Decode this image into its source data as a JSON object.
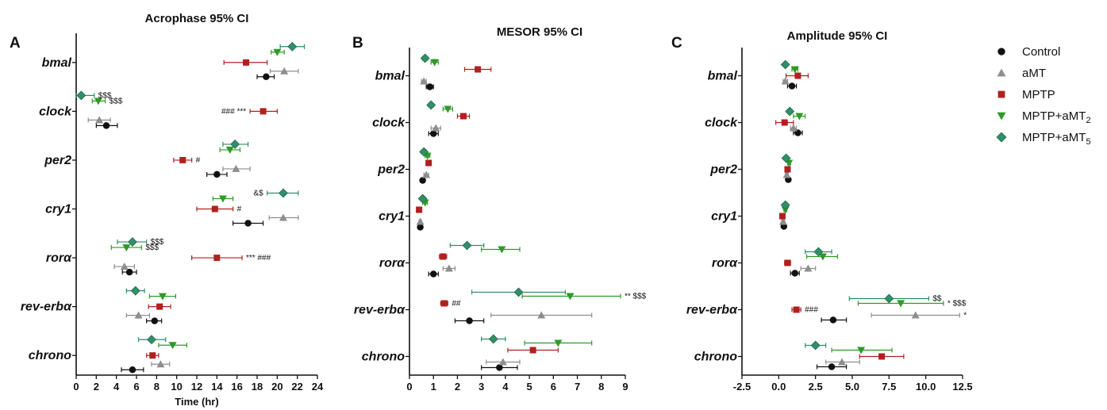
{
  "genes": [
    "bmal",
    "clock",
    "per2",
    "cry1",
    "rorα",
    "rev-erbα",
    "chrono"
  ],
  "legend": [
    {
      "key": "ctrl",
      "label": "Control",
      "color": "#111111",
      "marker": "circle"
    },
    {
      "key": "amt",
      "label": "aMT",
      "color": "#8e8e8e",
      "marker": "triangle-up"
    },
    {
      "key": "mptp",
      "label": "MPTP",
      "color": "#b0201e",
      "marker": "square"
    },
    {
      "key": "amt2",
      "label": "MPTP+aMT",
      "sub": "2",
      "color": "#2e9a27",
      "marker": "triangle-down"
    },
    {
      "key": "amt5",
      "label": "MPTP+aMT",
      "sub": "5",
      "color": "#2f8f68",
      "marker": "diamond"
    }
  ],
  "chart_data": [
    {
      "type": "scatter",
      "letter": "A",
      "title": "Acrophase  95% CI",
      "xlabel": "Time (hr)",
      "xlim": [
        0,
        24
      ],
      "xticks": [
        "0",
        "2",
        "4",
        "6",
        "8",
        "10",
        "12",
        "14",
        "16",
        "18",
        "20",
        "22",
        "24"
      ],
      "series": [
        {
          "key": "ctrl",
          "points": [
            {
              "gene": "bmal",
              "x": 18.9,
              "lo": 18.0,
              "hi": 19.7
            },
            {
              "gene": "clock",
              "x": 3.0,
              "lo": 2.0,
              "hi": 4.1
            },
            {
              "gene": "per2",
              "x": 14.0,
              "lo": 13.0,
              "hi": 15.0
            },
            {
              "gene": "cry1",
              "x": 17.1,
              "lo": 15.6,
              "hi": 18.6
            },
            {
              "gene": "rorα",
              "x": 5.3,
              "lo": 4.6,
              "hi": 6.0
            },
            {
              "gene": "rev-erbα",
              "x": 7.8,
              "lo": 7.0,
              "hi": 8.5
            },
            {
              "gene": "chrono",
              "x": 5.6,
              "lo": 4.5,
              "hi": 6.7
            }
          ]
        },
        {
          "key": "amt",
          "points": [
            {
              "gene": "bmal",
              "x": 20.7,
              "lo": 19.3,
              "hi": 22.1
            },
            {
              "gene": "clock",
              "x": 2.3,
              "lo": 1.2,
              "hi": 3.4
            },
            {
              "gene": "per2",
              "x": 15.9,
              "lo": 14.6,
              "hi": 17.3
            },
            {
              "gene": "cry1",
              "x": 20.6,
              "lo": 19.2,
              "hi": 22.1
            },
            {
              "gene": "rorα",
              "x": 4.8,
              "lo": 3.8,
              "hi": 5.8
            },
            {
              "gene": "rev-erbα",
              "x": 6.2,
              "lo": 5.0,
              "hi": 7.3
            },
            {
              "gene": "chrono",
              "x": 8.4,
              "lo": 7.5,
              "hi": 9.3
            }
          ]
        },
        {
          "key": "mptp",
          "points": [
            {
              "gene": "bmal",
              "x": 16.9,
              "lo": 14.7,
              "hi": 19.0
            },
            {
              "gene": "clock",
              "x": 18.6,
              "lo": 17.3,
              "hi": 20.0
            },
            {
              "gene": "per2",
              "x": 10.6,
              "lo": 9.7,
              "hi": 11.5
            },
            {
              "gene": "cry1",
              "x": 13.8,
              "lo": 12.0,
              "hi": 15.6
            },
            {
              "gene": "rorα",
              "x": 14.0,
              "lo": 11.5,
              "hi": 16.5
            },
            {
              "gene": "rev-erbα",
              "x": 8.3,
              "lo": 7.2,
              "hi": 9.4
            },
            {
              "gene": "chrono",
              "x": 7.6,
              "lo": 7.0,
              "hi": 8.2
            }
          ]
        },
        {
          "key": "amt2",
          "points": [
            {
              "gene": "bmal",
              "x": 20.0,
              "lo": 19.4,
              "hi": 20.7
            },
            {
              "gene": "clock",
              "x": 2.2,
              "lo": 1.6,
              "hi": 2.9
            },
            {
              "gene": "per2",
              "x": 15.3,
              "lo": 14.3,
              "hi": 16.3
            },
            {
              "gene": "cry1",
              "x": 14.6,
              "lo": 13.6,
              "hi": 15.6
            },
            {
              "gene": "rorα",
              "x": 5.0,
              "lo": 3.5,
              "hi": 6.5
            },
            {
              "gene": "rev-erbα",
              "x": 8.6,
              "lo": 7.3,
              "hi": 9.9
            },
            {
              "gene": "chrono",
              "x": 9.6,
              "lo": 8.2,
              "hi": 11.0
            }
          ]
        },
        {
          "key": "amt5",
          "points": [
            {
              "gene": "bmal",
              "x": 21.5,
              "lo": 20.3,
              "hi": 22.7
            },
            {
              "gene": "clock",
              "x": 0.5,
              "lo": 0.0,
              "hi": 1.8
            },
            {
              "gene": "per2",
              "x": 15.8,
              "lo": 14.6,
              "hi": 17.1
            },
            {
              "gene": "cry1",
              "x": 20.6,
              "lo": 19.0,
              "hi": 22.1
            },
            {
              "gene": "rorα",
              "x": 5.6,
              "lo": 4.1,
              "hi": 7.0
            },
            {
              "gene": "rev-erbα",
              "x": 5.9,
              "lo": 5.0,
              "hi": 6.8
            },
            {
              "gene": "chrono",
              "x": 7.5,
              "lo": 6.2,
              "hi": 8.9
            }
          ]
        }
      ],
      "annotations": [
        {
          "text": "$$$",
          "gene": "clock",
          "key": "amt5"
        },
        {
          "text": "$$$",
          "gene": "clock",
          "key": "amt2"
        },
        {
          "text": "### ***",
          "gene": "clock",
          "key": "mptp",
          "side": "left"
        },
        {
          "text": "#",
          "gene": "per2",
          "key": "mptp"
        },
        {
          "text": "&$",
          "gene": "cry1",
          "key": "amt5",
          "side": "left"
        },
        {
          "text": "#",
          "gene": "cry1",
          "key": "mptp"
        },
        {
          "text": "$$$",
          "gene": "rorα",
          "key": "amt5"
        },
        {
          "text": "$$$",
          "gene": "rorα",
          "key": "amt2"
        },
        {
          "text": "*** ###",
          "gene": "rorα",
          "key": "mptp"
        }
      ]
    },
    {
      "type": "scatter",
      "letter": "B",
      "title": "MESOR 95% CI",
      "xlabel": "",
      "xlim": [
        0,
        9
      ],
      "xticks": [
        "0",
        "1",
        "2",
        "3",
        "4",
        "5",
        "6",
        "7",
        "8",
        "9"
      ],
      "series": [
        {
          "key": "ctrl",
          "points": [
            {
              "gene": "bmal",
              "x": 0.85,
              "lo": 0.7,
              "hi": 1.0
            },
            {
              "gene": "clock",
              "x": 1.0,
              "lo": 0.8,
              "hi": 1.2
            },
            {
              "gene": "per2",
              "x": 0.55,
              "lo": 0.5,
              "hi": 0.6
            },
            {
              "gene": "cry1",
              "x": 0.45,
              "lo": 0.4,
              "hi": 0.5
            },
            {
              "gene": "rorα",
              "x": 1.0,
              "lo": 0.8,
              "hi": 1.2
            },
            {
              "gene": "rev-erbα",
              "x": 2.5,
              "lo": 1.9,
              "hi": 3.1
            },
            {
              "gene": "chrono",
              "x": 3.75,
              "lo": 3.0,
              "hi": 4.5
            }
          ]
        },
        {
          "key": "amt",
          "points": [
            {
              "gene": "bmal",
              "x": 0.6,
              "lo": 0.5,
              "hi": 0.7
            },
            {
              "gene": "clock",
              "x": 1.1,
              "lo": 0.9,
              "hi": 1.3
            },
            {
              "gene": "per2",
              "x": 0.7,
              "lo": 0.6,
              "hi": 0.8
            },
            {
              "gene": "cry1",
              "x": 0.45,
              "lo": 0.4,
              "hi": 0.5
            },
            {
              "gene": "rorα",
              "x": 1.65,
              "lo": 1.4,
              "hi": 1.9
            },
            {
              "gene": "rev-erbα",
              "x": 5.5,
              "lo": 3.4,
              "hi": 7.6
            },
            {
              "gene": "chrono",
              "x": 3.9,
              "lo": 3.2,
              "hi": 4.6
            }
          ]
        },
        {
          "key": "mptp",
          "points": [
            {
              "gene": "bmal",
              "x": 2.85,
              "lo": 2.3,
              "hi": 3.4
            },
            {
              "gene": "clock",
              "x": 2.25,
              "lo": 2.0,
              "hi": 2.5
            },
            {
              "gene": "per2",
              "x": 0.8,
              "lo": 0.7,
              "hi": 0.9
            },
            {
              "gene": "cry1",
              "x": 0.4,
              "lo": 0.35,
              "hi": 0.45
            },
            {
              "gene": "rorα",
              "x": 1.4,
              "lo": 1.25,
              "hi": 1.55
            },
            {
              "gene": "rev-erbα",
              "x": 1.45,
              "lo": 1.3,
              "hi": 1.6
            },
            {
              "gene": "chrono",
              "x": 5.15,
              "lo": 4.1,
              "hi": 6.2
            }
          ]
        },
        {
          "key": "amt2",
          "points": [
            {
              "gene": "bmal",
              "x": 1.05,
              "lo": 0.9,
              "hi": 1.2
            },
            {
              "gene": "clock",
              "x": 1.6,
              "lo": 1.4,
              "hi": 1.8
            },
            {
              "gene": "per2",
              "x": 0.75,
              "lo": 0.65,
              "hi": 0.85
            },
            {
              "gene": "cry1",
              "x": 0.65,
              "lo": 0.55,
              "hi": 0.75
            },
            {
              "gene": "rorα",
              "x": 3.85,
              "lo": 3.0,
              "hi": 4.6
            },
            {
              "gene": "rev-erbα",
              "x": 6.7,
              "lo": 4.7,
              "hi": 8.8
            },
            {
              "gene": "chrono",
              "x": 6.2,
              "lo": 4.8,
              "hi": 7.6
            }
          ]
        },
        {
          "key": "amt5",
          "points": [
            {
              "gene": "bmal",
              "x": 0.65,
              "lo": 0.55,
              "hi": 0.75
            },
            {
              "gene": "clock",
              "x": 0.9,
              "lo": 0.8,
              "hi": 1.0
            },
            {
              "gene": "per2",
              "x": 0.6,
              "lo": 0.5,
              "hi": 0.7
            },
            {
              "gene": "cry1",
              "x": 0.55,
              "lo": 0.45,
              "hi": 0.65
            },
            {
              "gene": "rorα",
              "x": 2.4,
              "lo": 1.7,
              "hi": 3.1
            },
            {
              "gene": "rev-erbα",
              "x": 4.55,
              "lo": 2.6,
              "hi": 6.5
            },
            {
              "gene": "chrono",
              "x": 3.5,
              "lo": 3.0,
              "hi": 4.0
            }
          ]
        }
      ],
      "annotations": [
        {
          "text": "##",
          "gene": "rev-erbα",
          "key": "mptp"
        },
        {
          "text": "**  $$$",
          "gene": "rev-erbα",
          "key": "amt2"
        }
      ]
    },
    {
      "type": "scatter",
      "letter": "C",
      "title": "Amplitude 95% CI",
      "xlabel": "",
      "xlim": [
        -2.5,
        12.5
      ],
      "xticks": [
        "-2.5",
        "0.0",
        "2.5",
        "5.0",
        "7.5",
        "10.0",
        "12.5"
      ],
      "series": [
        {
          "key": "ctrl",
          "points": [
            {
              "gene": "bmal",
              "x": 0.9,
              "lo": 0.6,
              "hi": 1.2
            },
            {
              "gene": "clock",
              "x": 1.3,
              "lo": 1.0,
              "hi": 1.6
            },
            {
              "gene": "per2",
              "x": 0.65,
              "lo": 0.5,
              "hi": 0.8
            },
            {
              "gene": "cry1",
              "x": 0.35,
              "lo": 0.25,
              "hi": 0.45
            },
            {
              "gene": "rorα",
              "x": 1.1,
              "lo": 0.8,
              "hi": 1.4
            },
            {
              "gene": "rev-erbα",
              "x": 3.7,
              "lo": 2.9,
              "hi": 4.6
            },
            {
              "gene": "chrono",
              "x": 3.6,
              "lo": 2.6,
              "hi": 4.6
            }
          ]
        },
        {
          "key": "amt",
          "points": [
            {
              "gene": "bmal",
              "x": 0.45,
              "lo": 0.3,
              "hi": 0.6
            },
            {
              "gene": "clock",
              "x": 1.0,
              "lo": 0.8,
              "hi": 1.2
            },
            {
              "gene": "per2",
              "x": 0.55,
              "lo": 0.45,
              "hi": 0.65
            },
            {
              "gene": "cry1",
              "x": 0.3,
              "lo": 0.2,
              "hi": 0.4
            },
            {
              "gene": "rorα",
              "x": 2.0,
              "lo": 1.5,
              "hi": 2.5
            },
            {
              "gene": "rev-erbα",
              "x": 9.3,
              "lo": 6.3,
              "hi": 12.3
            },
            {
              "gene": "chrono",
              "x": 4.3,
              "lo": 3.2,
              "hi": 5.5
            }
          ]
        },
        {
          "key": "mptp",
          "points": [
            {
              "gene": "bmal",
              "x": 1.3,
              "lo": 0.5,
              "hi": 2.0
            },
            {
              "gene": "clock",
              "x": 0.4,
              "lo": -0.2,
              "hi": 1.0
            },
            {
              "gene": "per2",
              "x": 0.6,
              "lo": 0.5,
              "hi": 0.7
            },
            {
              "gene": "cry1",
              "x": 0.25,
              "lo": 0.15,
              "hi": 0.35
            },
            {
              "gene": "rorα",
              "x": 0.6,
              "lo": 0.4,
              "hi": 0.8
            },
            {
              "gene": "rev-erbα",
              "x": 1.2,
              "lo": 0.9,
              "hi": 1.5
            },
            {
              "gene": "chrono",
              "x": 7.0,
              "lo": 5.5,
              "hi": 8.5
            }
          ]
        },
        {
          "key": "amt2",
          "points": [
            {
              "gene": "bmal",
              "x": 1.1,
              "lo": 0.9,
              "hi": 1.3
            },
            {
              "gene": "clock",
              "x": 1.4,
              "lo": 1.0,
              "hi": 1.8
            },
            {
              "gene": "per2",
              "x": 0.7,
              "lo": 0.6,
              "hi": 0.8
            },
            {
              "gene": "cry1",
              "x": 0.45,
              "lo": 0.35,
              "hi": 0.55
            },
            {
              "gene": "rorα",
              "x": 3.0,
              "lo": 1.9,
              "hi": 4.0
            },
            {
              "gene": "rev-erbα",
              "x": 8.3,
              "lo": 5.4,
              "hi": 11.2
            },
            {
              "gene": "chrono",
              "x": 5.6,
              "lo": 3.6,
              "hi": 7.7
            }
          ]
        },
        {
          "key": "amt5",
          "points": [
            {
              "gene": "bmal",
              "x": 0.45,
              "lo": 0.35,
              "hi": 0.55
            },
            {
              "gene": "clock",
              "x": 0.75,
              "lo": 0.6,
              "hi": 0.9
            },
            {
              "gene": "per2",
              "x": 0.5,
              "lo": 0.4,
              "hi": 0.6
            },
            {
              "gene": "cry1",
              "x": 0.45,
              "lo": 0.35,
              "hi": 0.55
            },
            {
              "gene": "rorα",
              "x": 2.7,
              "lo": 1.8,
              "hi": 3.6
            },
            {
              "gene": "rev-erbα",
              "x": 7.5,
              "lo": 4.8,
              "hi": 10.2
            },
            {
              "gene": "chrono",
              "x": 2.5,
              "lo": 1.8,
              "hi": 3.2
            }
          ]
        }
      ],
      "annotations": [
        {
          "text": "###",
          "gene": "rev-erbα",
          "key": "mptp"
        },
        {
          "text": "$$",
          "gene": "rev-erbα",
          "key": "amt5"
        },
        {
          "text": "*  $$$",
          "gene": "rev-erbα",
          "key": "amt2"
        },
        {
          "text": "*",
          "gene": "rev-erbα",
          "key": "amt"
        }
      ]
    }
  ]
}
